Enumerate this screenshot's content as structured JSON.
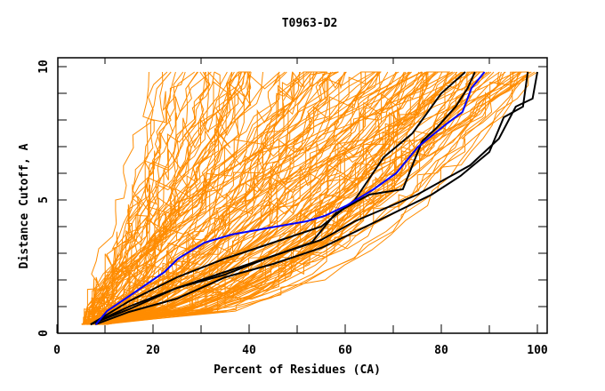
{
  "chart_data": {
    "type": "line",
    "title": "T0963-D2",
    "xlabel": "Percent of Residues (CA)",
    "ylabel": "Distance Cutoff, A",
    "xlim": [
      0,
      100
    ],
    "ylim": [
      0,
      10
    ],
    "x_ticks": [
      0,
      20,
      40,
      60,
      80,
      100
    ],
    "x_minor_ticks": [
      10,
      30,
      50,
      70,
      90
    ],
    "y_ticks": [
      0,
      5,
      10
    ],
    "y_minor_step": 1,
    "grid": false,
    "legend": "none",
    "colors": {
      "background_models": "#ff8c00",
      "highlight": "#0000ff",
      "reference": "#000000",
      "axes": "#000000"
    },
    "background_series_note": "Many (~150) orange GDT curves rising from ~0.3 A at 5-10% to ~9.8 A at 20-100%",
    "background_series_count": 150,
    "highlight_series": {
      "name": "highlight",
      "points": [
        [
          8.1,
          0.33
        ],
        [
          10.4,
          0.83
        ],
        [
          15.9,
          1.5
        ],
        [
          22.4,
          2.3
        ],
        [
          25.2,
          2.8
        ],
        [
          30.7,
          3.4
        ],
        [
          36.3,
          3.7
        ],
        [
          45.6,
          4.0
        ],
        [
          52,
          4.2
        ],
        [
          55.7,
          4.4
        ],
        [
          60.4,
          4.8
        ],
        [
          65.9,
          5.4
        ],
        [
          70.6,
          6.0
        ],
        [
          75.2,
          7.0
        ],
        [
          80.7,
          7.8
        ],
        [
          84.4,
          8.3
        ],
        [
          86.3,
          9.2
        ],
        [
          89,
          9.8
        ]
      ]
    },
    "reference_series": [
      {
        "name": "black-1",
        "points": [
          [
            7,
            0.33
          ],
          [
            15,
            1.2
          ],
          [
            25,
            2.1
          ],
          [
            35,
            2.8
          ],
          [
            45,
            3.4
          ],
          [
            55,
            4.0
          ],
          [
            62,
            5.0
          ],
          [
            68,
            6.6
          ],
          [
            74,
            7.5
          ],
          [
            80,
            9.0
          ],
          [
            85,
            9.8
          ]
        ]
      },
      {
        "name": "black-2",
        "points": [
          [
            7,
            0.33
          ],
          [
            15,
            1.0
          ],
          [
            25,
            1.7
          ],
          [
            35,
            2.2
          ],
          [
            45,
            2.9
          ],
          [
            53,
            3.4
          ],
          [
            58,
            4.5
          ],
          [
            65,
            5.2
          ],
          [
            72,
            5.4
          ],
          [
            74,
            6.3
          ],
          [
            76,
            7.2
          ],
          [
            79,
            7.7
          ],
          [
            83,
            8.5
          ],
          [
            85.5,
            9.2
          ],
          [
            87,
            9.8
          ]
        ]
      },
      {
        "name": "black-3",
        "points": [
          [
            7,
            0.33
          ],
          [
            15,
            0.9
          ],
          [
            25,
            1.7
          ],
          [
            35,
            2.3
          ],
          [
            45,
            2.9
          ],
          [
            55,
            3.5
          ],
          [
            62,
            4.2
          ],
          [
            75,
            5.2
          ],
          [
            86,
            6.3
          ],
          [
            92,
            7.3
          ],
          [
            95.5,
            8.5
          ],
          [
            99,
            8.8
          ],
          [
            100,
            9.8
          ]
        ]
      },
      {
        "name": "black-4",
        "points": [
          [
            8,
            0.33
          ],
          [
            15,
            0.8
          ],
          [
            25,
            1.3
          ],
          [
            35,
            2.1
          ],
          [
            45,
            2.6
          ],
          [
            55,
            3.2
          ],
          [
            62,
            3.8
          ],
          [
            78,
            5.2
          ],
          [
            84,
            5.9
          ],
          [
            90,
            6.8
          ],
          [
            93,
            8.1
          ],
          [
            97,
            8.5
          ],
          [
            98,
            9.8
          ]
        ]
      }
    ]
  }
}
